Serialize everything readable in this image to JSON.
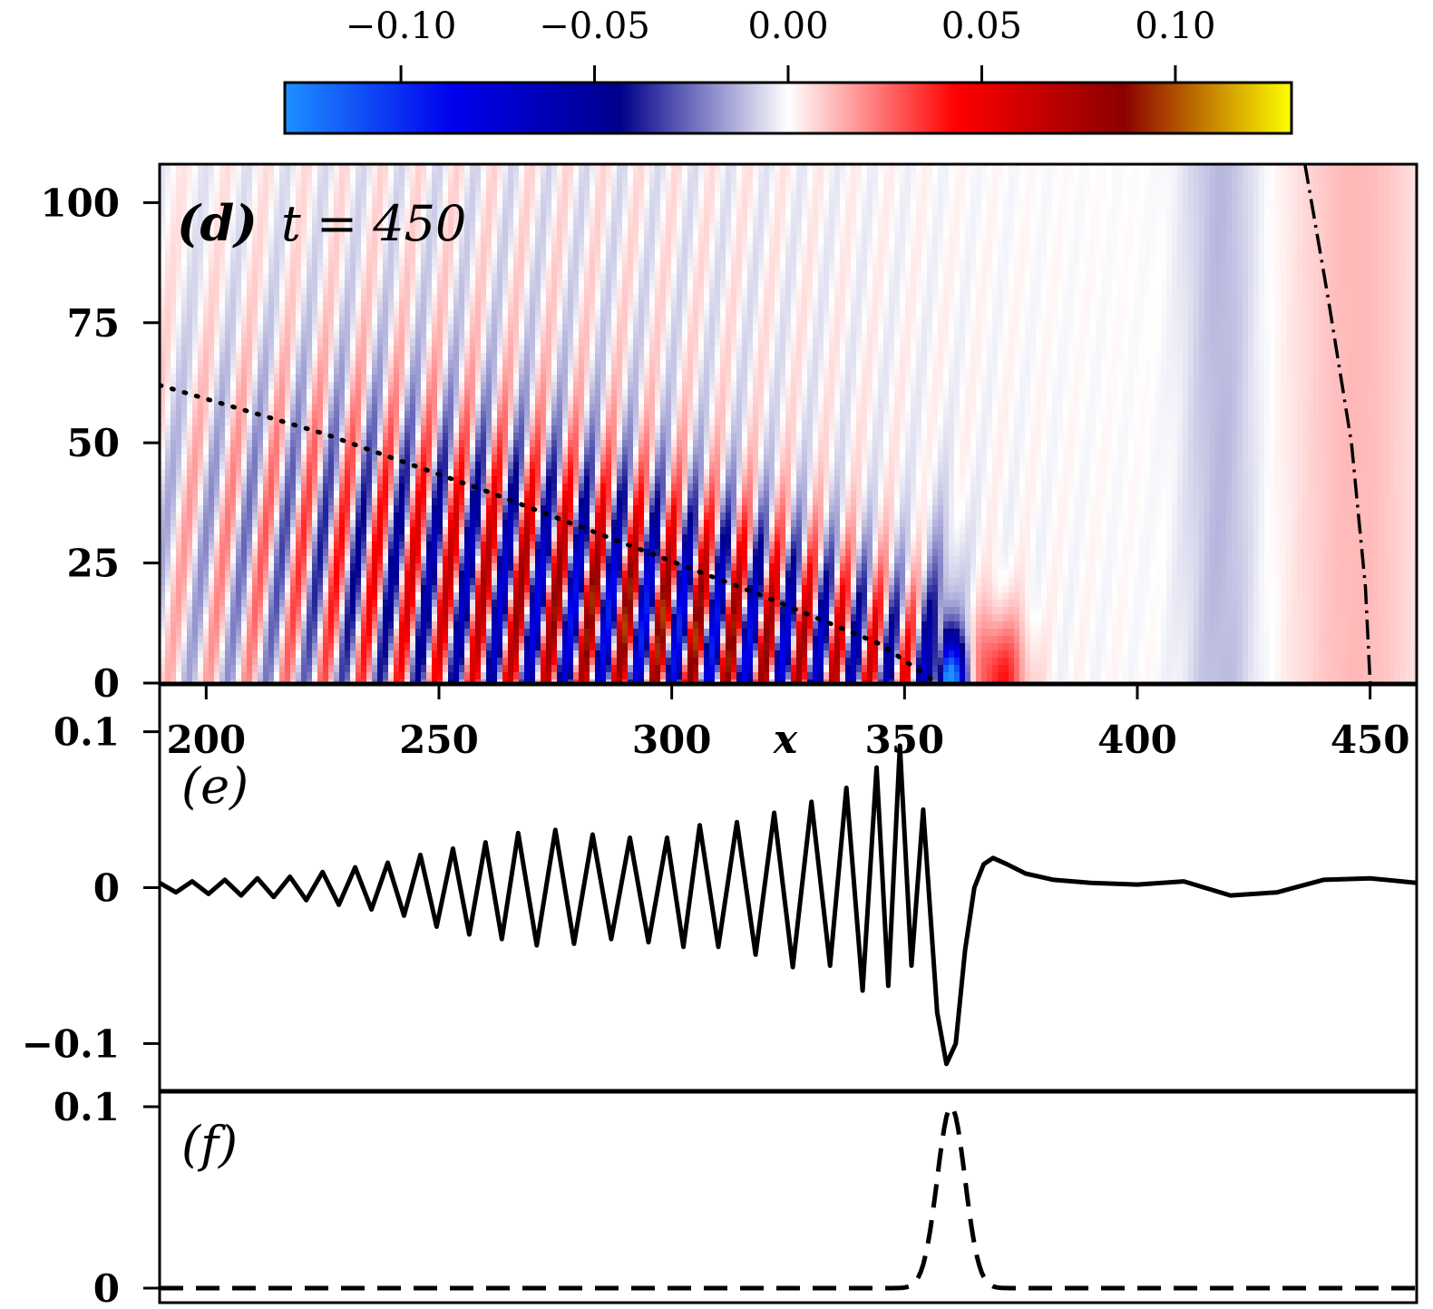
{
  "chart_data": [
    {
      "type": "heatmap",
      "panel": "(d)",
      "annotation": "(d) t = 450",
      "panel_letter": "(d)",
      "time_text": "t = 450",
      "x": {
        "label": "x",
        "range": [
          190,
          460
        ],
        "ticks": [
          200,
          250,
          300,
          350,
          400,
          450
        ],
        "tick_labels": [
          "200",
          "250",
          "300",
          "350",
          "400",
          "450"
        ]
      },
      "y": {
        "range": [
          0,
          108
        ],
        "ticks": [
          0,
          25,
          50,
          75,
          100
        ],
        "tick_labels": [
          "0",
          "25",
          "50",
          "75",
          "100"
        ]
      },
      "colorbar": {
        "range": [
          -0.13,
          0.13
        ],
        "ticks": [
          -0.1,
          -0.05,
          0.0,
          0.05,
          0.1
        ],
        "tick_labels": [
          "−0.10",
          "−0.05",
          "0.00",
          "0.05",
          "0.10"
        ],
        "colors": [
          "#1e90ff",
          "#0000ee",
          "#00008b",
          "#ffffff",
          "#ff0000",
          "#8b0000",
          "#ffff00"
        ]
      },
      "dotted_line": {
        "x": [
          190,
          225,
          260,
          290,
          320,
          345,
          357
        ],
        "y": [
          62,
          52,
          40,
          29,
          18,
          8,
          0
        ]
      },
      "dashdot_line": {
        "x": [
          436,
          441,
          446,
          449,
          450
        ],
        "y": [
          108,
          80,
          50,
          20,
          0
        ]
      }
    },
    {
      "type": "line",
      "panel": "(e)",
      "annotation": "(e)",
      "x_range": [
        190,
        460
      ],
      "y_range": [
        -0.13,
        0.13
      ],
      "y_ticks": [
        -0.1,
        0,
        0.1
      ],
      "y_tick_labels": [
        "−0.1",
        "0",
        "0.1"
      ],
      "series": [
        {
          "name": "solid",
          "style": "solid",
          "x": [
            190,
            193.5,
            197,
            200.5,
            204,
            207.5,
            211,
            214.5,
            218,
            221.5,
            225,
            228.5,
            232,
            235.5,
            239,
            242.5,
            246,
            249.5,
            253,
            256.5,
            260,
            263.5,
            267,
            271,
            275,
            279,
            283,
            287,
            291,
            295,
            299,
            302.5,
            306,
            310,
            314,
            318,
            322,
            326,
            330,
            334,
            337.5,
            341,
            344,
            346.5,
            349,
            351.5,
            354,
            357,
            359,
            361,
            363,
            365,
            367,
            369,
            372,
            376,
            382,
            390,
            400,
            410,
            420,
            430,
            440,
            450,
            460
          ],
          "y": [
            0.003,
            -0.003,
            0.004,
            -0.004,
            0.005,
            -0.005,
            0.006,
            -0.006,
            0.007,
            -0.008,
            0.01,
            -0.011,
            0.013,
            -0.014,
            0.016,
            -0.018,
            0.021,
            -0.025,
            0.025,
            -0.03,
            0.029,
            -0.033,
            0.035,
            -0.037,
            0.037,
            -0.036,
            0.034,
            -0.033,
            0.032,
            -0.035,
            0.032,
            -0.038,
            0.04,
            -0.038,
            0.042,
            -0.043,
            0.048,
            -0.051,
            0.055,
            -0.05,
            0.064,
            -0.066,
            0.077,
            -0.063,
            0.091,
            -0.05,
            0.05,
            -0.08,
            -0.113,
            -0.1,
            -0.04,
            0,
            0.015,
            0.019,
            0.015,
            0.009,
            0.005,
            0.003,
            0.002,
            0.004,
            -0.005,
            -0.003,
            0.005,
            0.006,
            0.003
          ]
        }
      ]
    },
    {
      "type": "line",
      "panel": "(f)",
      "annotation": "(f)",
      "x_range": [
        190,
        460
      ],
      "y_range": [
        -0.008,
        0.108
      ],
      "y_ticks": [
        0,
        0.1
      ],
      "y_tick_labels": [
        "0",
        "0.1"
      ],
      "series": [
        {
          "name": "dashed",
          "style": "dashed",
          "gaussian": {
            "center": 360,
            "amplitude": 0.1,
            "width": 4.2
          }
        }
      ]
    }
  ]
}
